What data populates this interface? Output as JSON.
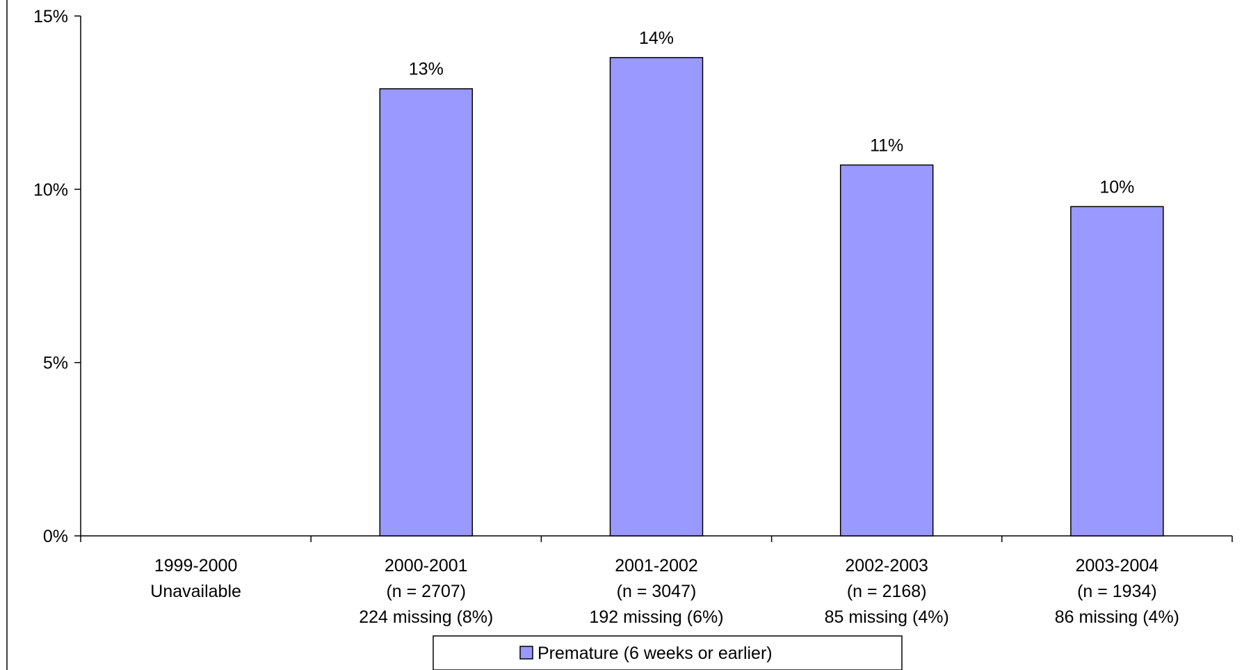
{
  "chart_data": {
    "type": "bar",
    "categories": [
      [
        "1999-2000",
        "Unavailable",
        ""
      ],
      [
        "2000-2001",
        "(n = 2707)",
        "224 missing (8%)"
      ],
      [
        "2001-2002",
        "(n = 3047)",
        "192 missing (6%)"
      ],
      [
        "2002-2003",
        "(n = 2168)",
        "85 missing (4%)"
      ],
      [
        "2003-2004",
        "(n = 1934)",
        "86 missing (4%)"
      ]
    ],
    "series": [
      {
        "name": "Premature (6 weeks or earlier)",
        "values": [
          null,
          12.9,
          13.8,
          10.7,
          9.5
        ],
        "labels": [
          "",
          "13%",
          "14%",
          "11%",
          "10%"
        ],
        "color": "#9999ff"
      }
    ],
    "yticks": [
      "0%",
      "5%",
      "10%",
      "15%"
    ],
    "ylim": [
      0,
      15
    ],
    "ylabel": "",
    "xlabel": "",
    "title": "",
    "grid": false,
    "legend": "bottom"
  }
}
